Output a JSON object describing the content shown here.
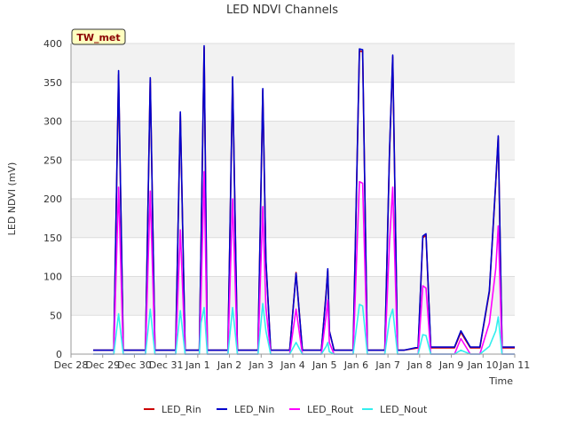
{
  "chart_data": {
    "type": "line",
    "title": "LED NDVI Channels",
    "xlabel": "Time",
    "ylabel": "LED NDVI (mV)",
    "station_tag": "TW_met",
    "xlim": [
      0,
      14
    ],
    "ylim": [
      0,
      400
    ],
    "y_ticks": [
      0,
      50,
      100,
      150,
      200,
      250,
      300,
      350,
      400
    ],
    "x_ticks": [
      {
        "x": 0,
        "label": "Dec 28"
      },
      {
        "x": 1,
        "label": "Dec 29"
      },
      {
        "x": 2,
        "label": "Dec 30"
      },
      {
        "x": 3,
        "label": "Dec 31"
      },
      {
        "x": 4,
        "label": "Jan 1"
      },
      {
        "x": 5,
        "label": "Jan 2"
      },
      {
        "x": 6,
        "label": "Jan 3"
      },
      {
        "x": 7,
        "label": "Jan 4"
      },
      {
        "x": 8,
        "label": "Jan 5"
      },
      {
        "x": 9,
        "label": "Jan 6"
      },
      {
        "x": 10,
        "label": "Jan 7"
      },
      {
        "x": 11,
        "label": "Jan 8"
      },
      {
        "x": 12,
        "label": "Jan 9"
      },
      {
        "x": 13,
        "label": "Jan 10"
      },
      {
        "x": 14,
        "label": "Jan 11"
      }
    ],
    "grid": true,
    "legend_position": "bottom",
    "series": [
      {
        "name": "LED_Rin",
        "color": "#cc0000",
        "x": [
          0.7,
          1.35,
          1.5,
          1.65,
          1.9,
          2.35,
          2.5,
          2.65,
          2.9,
          3.3,
          3.45,
          3.6,
          3.9,
          4.05,
          4.1,
          4.2,
          4.3,
          4.5,
          4.95,
          5.1,
          5.25,
          5.5,
          5.9,
          6.05,
          6.15,
          6.3,
          6.5,
          6.9,
          7.1,
          7.3,
          7.5,
          7.9,
          8.05,
          8.1,
          8.15,
          8.3,
          8.5,
          8.9,
          9.1,
          9.2,
          9.35,
          9.6,
          9.9,
          10.05,
          10.15,
          10.3,
          10.5,
          10.95,
          11.1,
          11.2,
          11.35,
          11.5,
          11.95,
          12.1,
          12.3,
          12.6,
          12.9,
          13.2,
          13.4,
          13.48,
          13.6,
          14.0
        ],
        "values": [
          5,
          5,
          360,
          5,
          5,
          5,
          355,
          5,
          5,
          5,
          310,
          5,
          5,
          5,
          130,
          395,
          5,
          5,
          5,
          355,
          5,
          5,
          5,
          340,
          120,
          5,
          5,
          5,
          105,
          5,
          5,
          5,
          80,
          108,
          30,
          5,
          5,
          5,
          390,
          390,
          5,
          5,
          5,
          260,
          383,
          5,
          5,
          8,
          150,
          153,
          8,
          8,
          8,
          8,
          28,
          8,
          8,
          80,
          220,
          280,
          8,
          8
        ]
      },
      {
        "name": "LED_Nin",
        "color": "#0000cc",
        "x": [
          0.7,
          1.35,
          1.5,
          1.65,
          1.9,
          2.35,
          2.5,
          2.65,
          2.9,
          3.3,
          3.45,
          3.6,
          3.9,
          4.05,
          4.1,
          4.2,
          4.3,
          4.5,
          4.95,
          5.1,
          5.25,
          5.5,
          5.9,
          6.05,
          6.15,
          6.3,
          6.5,
          6.9,
          7.1,
          7.3,
          7.5,
          7.9,
          8.05,
          8.1,
          8.15,
          8.3,
          8.5,
          8.9,
          9.1,
          9.2,
          9.35,
          9.6,
          9.9,
          10.05,
          10.15,
          10.3,
          10.5,
          10.95,
          11.1,
          11.2,
          11.35,
          11.5,
          11.95,
          12.1,
          12.3,
          12.6,
          12.9,
          13.2,
          13.4,
          13.48,
          13.6,
          14.0
        ],
        "values": [
          5,
          5,
          365,
          5,
          5,
          5,
          356,
          5,
          5,
          5,
          312,
          5,
          5,
          5,
          130,
          397,
          5,
          5,
          5,
          357,
          5,
          5,
          5,
          342,
          122,
          5,
          5,
          5,
          104,
          5,
          5,
          5,
          78,
          110,
          30,
          5,
          5,
          5,
          393,
          392,
          5,
          5,
          5,
          262,
          385,
          5,
          5,
          9,
          152,
          155,
          9,
          9,
          9,
          9,
          30,
          9,
          9,
          82,
          222,
          281,
          9,
          9
        ]
      },
      {
        "name": "LED_Rout",
        "color": "#ff00ff",
        "x": [
          0.7,
          1.35,
          1.5,
          1.65,
          1.9,
          2.35,
          2.5,
          2.65,
          2.9,
          3.3,
          3.45,
          3.6,
          3.9,
          4.05,
          4.1,
          4.2,
          4.3,
          4.5,
          4.95,
          5.1,
          5.25,
          5.5,
          5.9,
          6.05,
          6.15,
          6.3,
          6.5,
          6.9,
          7.1,
          7.3,
          7.5,
          7.9,
          8.05,
          8.1,
          8.15,
          8.3,
          8.5,
          8.9,
          9.1,
          9.2,
          9.35,
          9.6,
          9.9,
          10.05,
          10.15,
          10.3,
          10.5,
          10.95,
          11.1,
          11.2,
          11.35,
          11.5,
          11.95,
          12.1,
          12.3,
          12.6,
          12.9,
          13.2,
          13.4,
          13.48,
          13.6,
          14.0
        ],
        "values": [
          0,
          0,
          215,
          0,
          0,
          0,
          210,
          0,
          0,
          0,
          160,
          0,
          0,
          0,
          70,
          235,
          0,
          0,
          0,
          200,
          0,
          0,
          0,
          190,
          60,
          0,
          0,
          0,
          58,
          0,
          0,
          0,
          50,
          70,
          15,
          0,
          0,
          0,
          222,
          220,
          0,
          0,
          0,
          145,
          215,
          0,
          0,
          0,
          88,
          85,
          0,
          0,
          0,
          0,
          20,
          0,
          0,
          40,
          110,
          165,
          0,
          0
        ]
      },
      {
        "name": "LED_Nout",
        "color": "#33eeee",
        "x": [
          0.7,
          1.35,
          1.5,
          1.65,
          1.9,
          2.35,
          2.5,
          2.65,
          2.9,
          3.3,
          3.45,
          3.6,
          3.9,
          4.05,
          4.1,
          4.2,
          4.3,
          4.5,
          4.95,
          5.1,
          5.25,
          5.5,
          5.9,
          6.05,
          6.15,
          6.3,
          6.5,
          6.9,
          7.1,
          7.3,
          7.5,
          7.9,
          8.05,
          8.1,
          8.15,
          8.3,
          8.5,
          8.9,
          9.1,
          9.2,
          9.35,
          9.6,
          9.9,
          10.05,
          10.15,
          10.3,
          10.5,
          10.95,
          11.1,
          11.2,
          11.35,
          11.5,
          11.95,
          12.1,
          12.3,
          12.6,
          12.9,
          13.2,
          13.4,
          13.48,
          13.6,
          14.0
        ],
        "values": [
          0,
          0,
          52,
          0,
          0,
          0,
          58,
          0,
          0,
          0,
          56,
          0,
          0,
          0,
          40,
          60,
          0,
          0,
          0,
          60,
          0,
          0,
          0,
          65,
          30,
          0,
          0,
          0,
          15,
          0,
          0,
          0,
          10,
          15,
          3,
          0,
          0,
          0,
          64,
          62,
          0,
          0,
          0,
          45,
          58,
          0,
          0,
          0,
          25,
          24,
          0,
          0,
          0,
          0,
          5,
          0,
          0,
          10,
          30,
          48,
          0,
          0
        ]
      }
    ]
  }
}
